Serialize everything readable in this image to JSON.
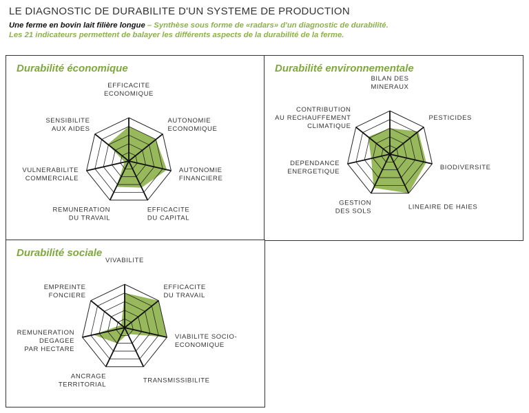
{
  "header": {
    "title": "LE DIAGNOSTIC DE DURABILITE D'UN SYSTEME DE PRODUCTION",
    "farm": "Une ferme en bovin lait filière longue",
    "subtitle": " – Synthèse sous forme de «radars» d'un diagnostic de durabilité.",
    "subtitle2": "Les 21 indicateurs permettent de balayer les différents aspects de la durabilité de la ferme."
  },
  "colors": {
    "fill": "#8db04a",
    "title_green": "#7fa83c",
    "grid": "#222222"
  },
  "chart_data": [
    {
      "type": "radar",
      "title": "Durabilité économique",
      "rmax": 5,
      "rings": 5,
      "axes": [
        [
          "EFFICACITE",
          "ECONOMIQUE"
        ],
        [
          "AUTONOMIE",
          "ECONOMIQUE"
        ],
        [
          "AUTONOMIE",
          "FINANCIERE"
        ],
        [
          "EFFICACITE",
          "DU CAPITAL"
        ],
        [
          "REMUNERATION",
          "DU TRAVAIL"
        ],
        [
          "VULNERABILITE",
          "COMMERCIALE"
        ],
        [
          "SENSIBILITE",
          "AUX AIDES"
        ]
      ],
      "values": [
        4,
        4,
        4.5,
        3.4,
        3.3,
        0.5,
        3.1
      ]
    },
    {
      "type": "radar",
      "title": "Durabilité environnementale",
      "rmax": 5,
      "rings": 5,
      "axes": [
        [
          "BILAN DES",
          "MINERAUX"
        ],
        [
          "PESTICIDES"
        ],
        [
          "BIODIVERSITE"
        ],
        [
          "LINEAIRE DE HAIES"
        ],
        [
          "GESTION",
          "DES SOLS"
        ],
        [
          "DEPENDANCE",
          "ENERGETIQUE"
        ],
        [
          "CONTRIBUTION",
          "AU RECHAUFFEMENT",
          "CLIMATIQUE"
        ]
      ],
      "values": [
        3,
        4.2,
        4.3,
        5,
        4.3,
        2.2,
        3.2
      ]
    },
    {
      "type": "radar",
      "title": "Durabilité sociale",
      "rmax": 5,
      "rings": 5,
      "axes": [
        [
          "VIVABILITE"
        ],
        [
          "EFFICACITE",
          "DU TRAVAIL"
        ],
        [
          "VIABILITE SOCIO-",
          "ECONOMIQUE"
        ],
        [
          "TRANSMISSIBILITE"
        ],
        [
          "ANCRAGE",
          "TERRITORIAL"
        ],
        [
          "REMUNERATION",
          "DEGAGEE",
          "PAR HECTARE"
        ],
        [
          "EMPREINTE",
          "FONCIERE"
        ]
      ],
      "values": [
        4,
        5,
        5,
        0.8,
        2,
        3.7,
        0.5
      ]
    }
  ]
}
